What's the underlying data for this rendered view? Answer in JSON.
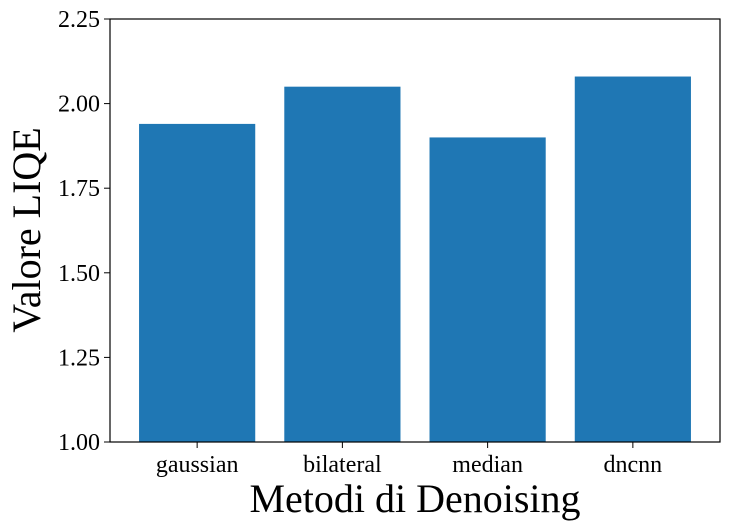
{
  "chart_data": {
    "type": "bar",
    "categories": [
      "gaussian",
      "bilateral",
      "median",
      "dncnn"
    ],
    "values": [
      1.94,
      2.05,
      1.9,
      2.08
    ],
    "title": "",
    "xlabel": "Metodi di Denoising",
    "ylabel": "Valore LIQE",
    "ylim": [
      1.0,
      2.25
    ],
    "yticks": [
      "1.00",
      "1.25",
      "1.50",
      "1.75",
      "2.00",
      "2.25"
    ],
    "grid": false,
    "bar_color": "#1f77b4"
  }
}
